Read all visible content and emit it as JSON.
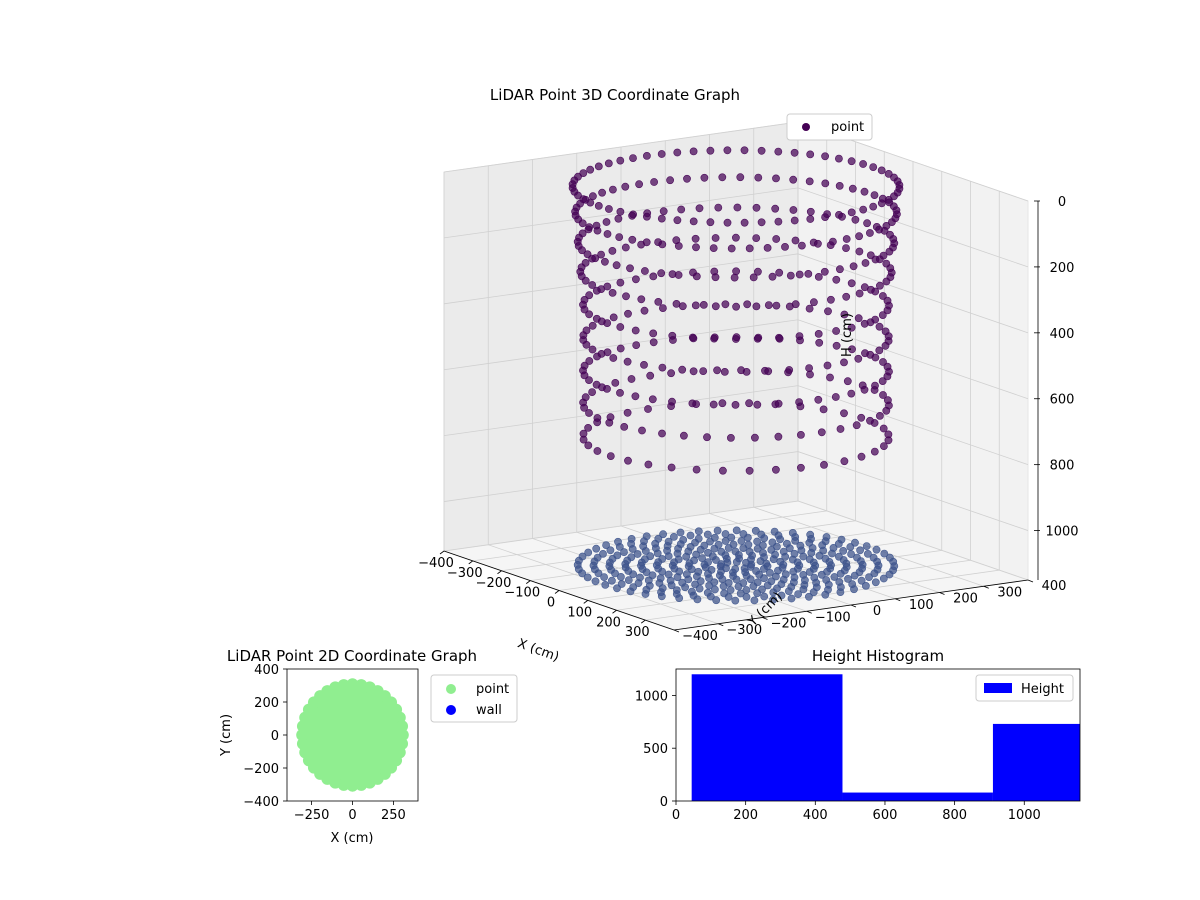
{
  "chart_data": [
    {
      "type": "scatter",
      "projection": "3d",
      "title": "LiDAR Point 3D Coordinate Graph",
      "xlabel": "X (cm)",
      "ylabel": "Y (cm)",
      "zlabel": "H (cm)",
      "xlim": [
        -400,
        400
      ],
      "ylim": [
        -400,
        400
      ],
      "zlim": [
        1150,
        0
      ],
      "x_ticks": [
        -400,
        -300,
        -200,
        -100,
        0,
        100,
        200,
        300
      ],
      "y_ticks": [
        -400,
        -300,
        -200,
        -100,
        0,
        100,
        200,
        300,
        400
      ],
      "z_ticks": [
        0,
        200,
        400,
        600,
        800,
        1000
      ],
      "z_inverted": true,
      "legend": {
        "position": "upper-right",
        "entries": [
          "point"
        ]
      },
      "color": "#440154",
      "color_floor": "#3b528b",
      "series": [
        {
          "name": "point",
          "description_rings": [
            {
              "radius": 310,
              "h": 0,
              "count": 60
            },
            {
              "radius": 305,
              "h": 80,
              "count": 56
            },
            {
              "radius": 300,
              "h": 170,
              "count": 52
            },
            {
              "radius": 295,
              "h": 260,
              "count": 48
            },
            {
              "radius": 290,
              "h": 360,
              "count": 44
            },
            {
              "radius": 290,
              "h": 460,
              "count": 44
            },
            {
              "radius": 290,
              "h": 560,
              "count": 44
            },
            {
              "radius": 290,
              "h": 660,
              "count": 40
            },
            {
              "radius": 290,
              "h": 760,
              "count": 36
            }
          ],
          "floor_rings": [
            {
              "radius": 30,
              "h": 1150,
              "count": 10
            },
            {
              "radius": 60,
              "h": 1150,
              "count": 16
            },
            {
              "radius": 90,
              "h": 1150,
              "count": 22
            },
            {
              "radius": 120,
              "h": 1150,
              "count": 28
            },
            {
              "radius": 150,
              "h": 1150,
              "count": 34
            },
            {
              "radius": 180,
              "h": 1150,
              "count": 40
            },
            {
              "radius": 210,
              "h": 1150,
              "count": 44
            },
            {
              "radius": 240,
              "h": 1150,
              "count": 48
            },
            {
              "radius": 270,
              "h": 1150,
              "count": 50
            },
            {
              "radius": 300,
              "h": 1150,
              "count": 52
            }
          ]
        }
      ]
    },
    {
      "type": "scatter",
      "title": "LiDAR Point 2D Coordinate Graph",
      "xlabel": "X (cm)",
      "ylabel": "Y (cm)",
      "xlim": [
        -400,
        400
      ],
      "ylim": [
        -400,
        400
      ],
      "x_ticks": [
        -250,
        0,
        250
      ],
      "y_ticks": [
        -400,
        -200,
        0,
        200,
        400
      ],
      "legend": {
        "position": "outside-right",
        "entries": [
          "point",
          "wall"
        ]
      },
      "series": [
        {
          "name": "point",
          "color": "#90ee90",
          "shape": "disk",
          "center": [
            0,
            0
          ],
          "radius": 320
        },
        {
          "name": "wall",
          "color": "#0000ff",
          "points": []
        }
      ]
    },
    {
      "type": "bar",
      "title": "Height Histogram",
      "xlabel": "",
      "ylabel": "",
      "xlim": [
        0,
        1160
      ],
      "ylim": [
        0,
        1250
      ],
      "x_ticks": [
        0,
        200,
        400,
        600,
        800,
        1000
      ],
      "y_ticks": [
        0,
        500,
        1000
      ],
      "legend": {
        "position": "upper-right",
        "entries": [
          "Height"
        ]
      },
      "color": "#0000ff",
      "bins": [
        {
          "start": 45,
          "end": 478,
          "value": 1200
        },
        {
          "start": 478,
          "end": 910,
          "value": 80
        },
        {
          "start": 910,
          "end": 1160,
          "value": 730
        }
      ]
    }
  ]
}
